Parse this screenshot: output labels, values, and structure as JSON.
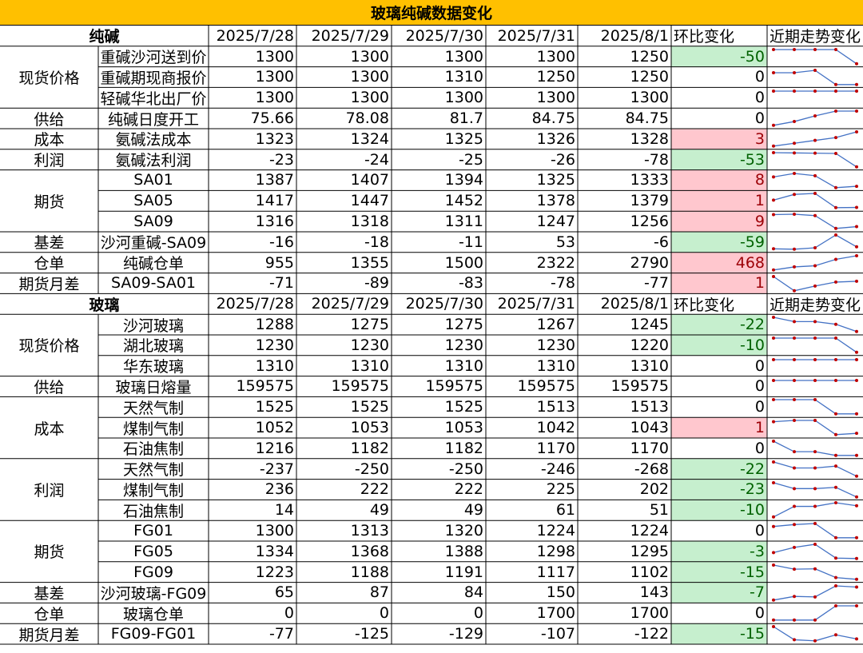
{
  "title": "玻璃纯碱数据变化",
  "colors": {
    "header_bg": "#FFC000",
    "increase_bg": "#FFC7CE",
    "increase_text": "#9C0006",
    "decrease_bg": "#C6EFCE",
    "decrease_text": "#006100",
    "sparkline_line": "#4472C4",
    "sparkline_marker": "#C00000"
  },
  "sections": [
    {
      "name": "纯碱",
      "headers": [
        "2025/7/28",
        "2025/7/29",
        "2025/7/30",
        "2025/7/31",
        "2025/8/1",
        "环比变化",
        "近期走势变化"
      ],
      "groups": [
        {
          "label": "现货价格",
          "rows": [
            {
              "name": "重碱沙河送到价",
              "values": [
                "1300",
                "1300",
                "1300",
                "1300",
                "1250"
              ],
              "change": "-50"
            },
            {
              "name": "重碱期现商报价",
              "values": [
                "1300",
                "1300",
                "1310",
                "1250",
                "1250"
              ],
              "change": "0"
            },
            {
              "name": "轻碱华北出厂价",
              "values": [
                "1300",
                "1300",
                "1300",
                "1300",
                "1300"
              ],
              "change": "0"
            }
          ]
        },
        {
          "label": "供给",
          "rows": [
            {
              "name": "纯碱日度开工",
              "values": [
                "75.66",
                "78.08",
                "81.7",
                "84.75",
                "84.75"
              ],
              "change": "0"
            }
          ]
        },
        {
          "label": "成本",
          "rows": [
            {
              "name": "氨碱法成本",
              "values": [
                "1323",
                "1324",
                "1325",
                "1326",
                "1328"
              ],
              "change": "3"
            }
          ]
        },
        {
          "label": "利润",
          "rows": [
            {
              "name": "氨碱法利润",
              "values": [
                "-23",
                "-24",
                "-25",
                "-26",
                "-78"
              ],
              "change": "-53"
            }
          ]
        },
        {
          "label": "期货",
          "rows": [
            {
              "name": "SA01",
              "values": [
                "1387",
                "1407",
                "1394",
                "1325",
                "1333"
              ],
              "change": "8"
            },
            {
              "name": "SA05",
              "values": [
                "1417",
                "1447",
                "1452",
                "1378",
                "1379"
              ],
              "change": "1"
            },
            {
              "name": "SA09",
              "values": [
                "1316",
                "1318",
                "1311",
                "1247",
                "1256"
              ],
              "change": "9"
            }
          ]
        },
        {
          "label": "基差",
          "rows": [
            {
              "name": "沙河重碱-SA09",
              "values": [
                "-16",
                "-18",
                "-11",
                "53",
                "-6"
              ],
              "change": "-59"
            }
          ]
        },
        {
          "label": "仓单",
          "rows": [
            {
              "name": "纯碱仓单",
              "values": [
                "955",
                "1355",
                "1500",
                "2322",
                "2790"
              ],
              "change": "468"
            }
          ]
        },
        {
          "label": "期货月差",
          "rows": [
            {
              "name": "SA09-SA01",
              "values": [
                "-71",
                "-89",
                "-83",
                "-78",
                "-77"
              ],
              "change": "1"
            }
          ]
        }
      ]
    },
    {
      "name": "玻璃",
      "headers": [
        "2025/7/28",
        "2025/7/29",
        "2025/7/30",
        "2025/7/31",
        "2025/8/1",
        "环比变化",
        "近期走势变化"
      ],
      "groups": [
        {
          "label": "现货价格",
          "rows": [
            {
              "name": "沙河玻璃",
              "values": [
                "1288",
                "1275",
                "1275",
                "1267",
                "1245"
              ],
              "change": "-22"
            },
            {
              "name": "湖北玻璃",
              "values": [
                "1230",
                "1230",
                "1230",
                "1230",
                "1220"
              ],
              "change": "-10"
            },
            {
              "name": "华东玻璃",
              "values": [
                "1310",
                "1310",
                "1310",
                "1310",
                "1310"
              ],
              "change": "0"
            }
          ]
        },
        {
          "label": "供给",
          "rows": [
            {
              "name": "玻璃日熔量",
              "values": [
                "159575",
                "159575",
                "159575",
                "159575",
                "159575"
              ],
              "change": "0"
            }
          ]
        },
        {
          "label": "成本",
          "rows": [
            {
              "name": "天然气制",
              "values": [
                "1525",
                "1525",
                "1525",
                "1513",
                "1513"
              ],
              "change": "0"
            },
            {
              "name": "煤制气制",
              "values": [
                "1052",
                "1053",
                "1053",
                "1042",
                "1043"
              ],
              "change": "1"
            },
            {
              "name": "石油焦制",
              "values": [
                "1216",
                "1182",
                "1182",
                "1170",
                "1170"
              ],
              "change": "0"
            }
          ]
        },
        {
          "label": "利润",
          "rows": [
            {
              "name": "天然气制",
              "values": [
                "-237",
                "-250",
                "-250",
                "-246",
                "-268"
              ],
              "change": "-22"
            },
            {
              "name": "煤制气制",
              "values": [
                "236",
                "222",
                "222",
                "225",
                "202"
              ],
              "change": "-23"
            },
            {
              "name": "石油焦制",
              "values": [
                "14",
                "49",
                "49",
                "61",
                "51"
              ],
              "change": "-10"
            }
          ]
        },
        {
          "label": "期货",
          "rows": [
            {
              "name": "FG01",
              "values": [
                "1300",
                "1313",
                "1320",
                "1224",
                "1224"
              ],
              "change": "0"
            },
            {
              "name": "FG05",
              "values": [
                "1334",
                "1368",
                "1388",
                "1298",
                "1295"
              ],
              "change": "-3"
            },
            {
              "name": "FG09",
              "values": [
                "1223",
                "1188",
                "1191",
                "1117",
                "1102"
              ],
              "change": "-15"
            }
          ]
        },
        {
          "label": "基差",
          "rows": [
            {
              "name": "沙河玻璃-FG09",
              "values": [
                "65",
                "87",
                "84",
                "150",
                "143"
              ],
              "change": "-7"
            }
          ]
        },
        {
          "label": "仓单",
          "rows": [
            {
              "name": "玻璃仓单",
              "values": [
                "0",
                "0",
                "0",
                "1700",
                "1700"
              ],
              "change": "0"
            }
          ]
        },
        {
          "label": "期货月差",
          "rows": [
            {
              "name": "FG09-FG01",
              "values": [
                "-77",
                "-125",
                "-129",
                "-107",
                "-122"
              ],
              "change": "-15"
            }
          ]
        }
      ]
    }
  ]
}
